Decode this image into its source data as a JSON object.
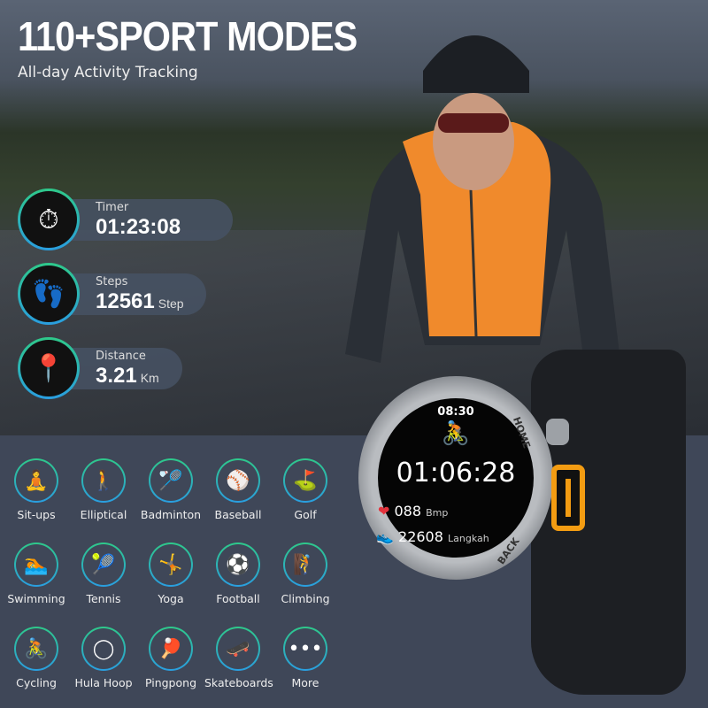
{
  "header": {
    "title": "110+SPORT MODES",
    "subtitle": "All-day Activity Tracking"
  },
  "stats": [
    {
      "label": "Timer",
      "value": "01:23:08",
      "unit": "",
      "icon": "stopwatch-icon"
    },
    {
      "label": "Steps",
      "value": "12561",
      "unit": "Step",
      "icon": "footprints-icon"
    },
    {
      "label": "Distance",
      "value": "3.21",
      "unit": "Km",
      "icon": "location-pin-icon"
    }
  ],
  "watch": {
    "time": "08:30",
    "workout_timer": "01:06:28",
    "heart_rate": "088",
    "heart_unit": "Bmp",
    "steps": "22608",
    "steps_unit": "Langkah",
    "button_top": "HOME",
    "button_bottom": "BACK",
    "accent": "#f39c12"
  },
  "sports": [
    {
      "name": "Sit-ups",
      "icon": "sit-ups-icon",
      "glyph": "🧘"
    },
    {
      "name": "Elliptical",
      "icon": "elliptical-icon",
      "glyph": "🚶"
    },
    {
      "name": "Badminton",
      "icon": "badminton-icon",
      "glyph": "🏸"
    },
    {
      "name": "Baseball",
      "icon": "baseball-icon",
      "glyph": "⚾"
    },
    {
      "name": "Golf",
      "icon": "golf-icon",
      "glyph": "⛳"
    },
    {
      "name": "Swimming",
      "icon": "swimming-icon",
      "glyph": "🏊"
    },
    {
      "name": "Tennis",
      "icon": "tennis-icon",
      "glyph": "🎾"
    },
    {
      "name": "Yoga",
      "icon": "yoga-icon",
      "glyph": "🤸"
    },
    {
      "name": "Football",
      "icon": "football-icon",
      "glyph": "⚽"
    },
    {
      "name": "Climbing",
      "icon": "climbing-icon",
      "glyph": "🧗"
    },
    {
      "name": "Cycling",
      "icon": "cycling-icon",
      "glyph": "🚴"
    },
    {
      "name": "Hula Hoop",
      "icon": "hula-hoop-icon",
      "glyph": "◯"
    },
    {
      "name": "Pingpong",
      "icon": "pingpong-icon",
      "glyph": "🏓"
    },
    {
      "name": "Skateboards",
      "icon": "skateboard-icon",
      "glyph": "🛹"
    },
    {
      "name": "More",
      "icon": "more-icon",
      "glyph": "•••"
    }
  ],
  "colors": {
    "panel": "#3f4758",
    "ring_top": "#2ec98a",
    "ring_bottom": "#2a9ee0",
    "vest": "#f08a2c"
  }
}
